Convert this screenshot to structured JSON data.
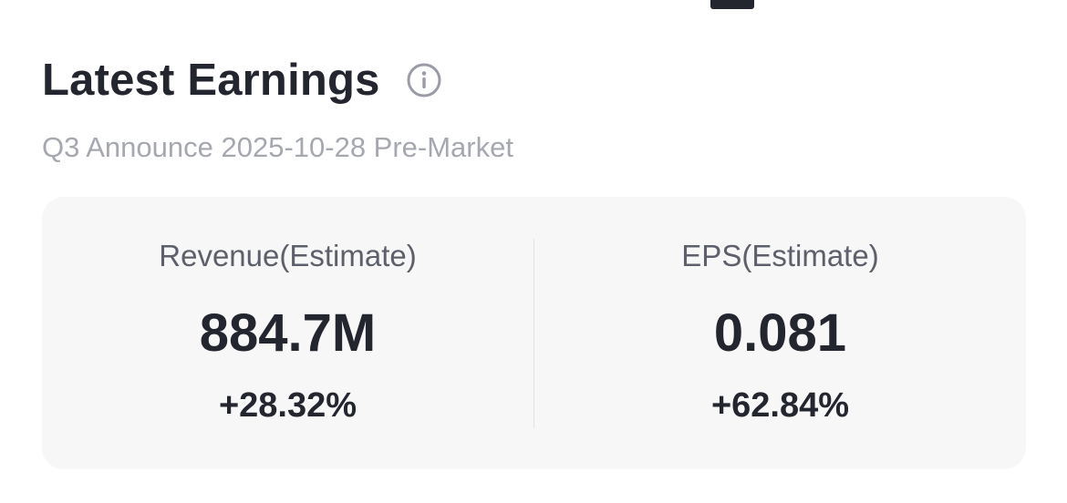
{
  "header": {
    "title": "Latest Earnings",
    "info_icon": "info-icon"
  },
  "subtitle": "Q3 Announce 2025-10-28 Pre-Market",
  "metrics": [
    {
      "label": "Revenue(Estimate)",
      "value": "884.7M",
      "change": "+28.32%"
    },
    {
      "label": "EPS(Estimate)",
      "value": "0.081",
      "change": "+62.84%"
    }
  ],
  "colors": {
    "text_primary": "#23252f",
    "text_secondary": "#a6a8b0",
    "label": "#5d606b",
    "card_bg": "#f7f7f8",
    "divider": "#e3e3e6"
  }
}
